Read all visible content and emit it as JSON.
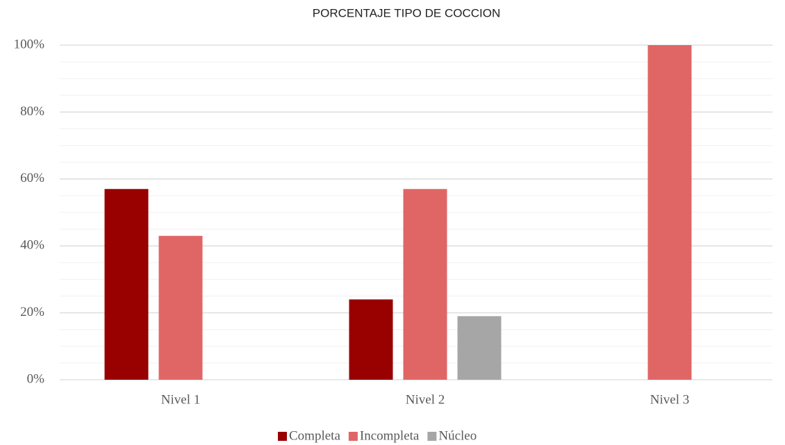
{
  "chart_data": {
    "type": "bar",
    "title": "PORCENTAJE TIPO DE COCCION",
    "categories": [
      "Nivel 1",
      "Nivel 2",
      "Nivel 3"
    ],
    "series": [
      {
        "name": "Completa",
        "color": "#990000",
        "values": [
          57,
          24,
          0
        ]
      },
      {
        "name": "Incompleta",
        "color": "#e06666",
        "values": [
          43,
          57,
          100
        ]
      },
      {
        "name": "Núcleo",
        "color": "#a6a6a6",
        "values": [
          0,
          19,
          0
        ]
      }
    ],
    "ylim": [
      0,
      100
    ],
    "yticks": [
      {
        "value": 0,
        "label": "0%"
      },
      {
        "value": 20,
        "label": "20%"
      },
      {
        "value": 40,
        "label": "40%"
      },
      {
        "value": 60,
        "label": "60%"
      },
      {
        "value": 80,
        "label": "80%"
      },
      {
        "value": 100,
        "label": "100%"
      }
    ],
    "minor_yticks": [
      5,
      10,
      15,
      25,
      30,
      35,
      45,
      50,
      55,
      65,
      70,
      75,
      85,
      90,
      95
    ],
    "grid": true,
    "legend": "bottom"
  }
}
